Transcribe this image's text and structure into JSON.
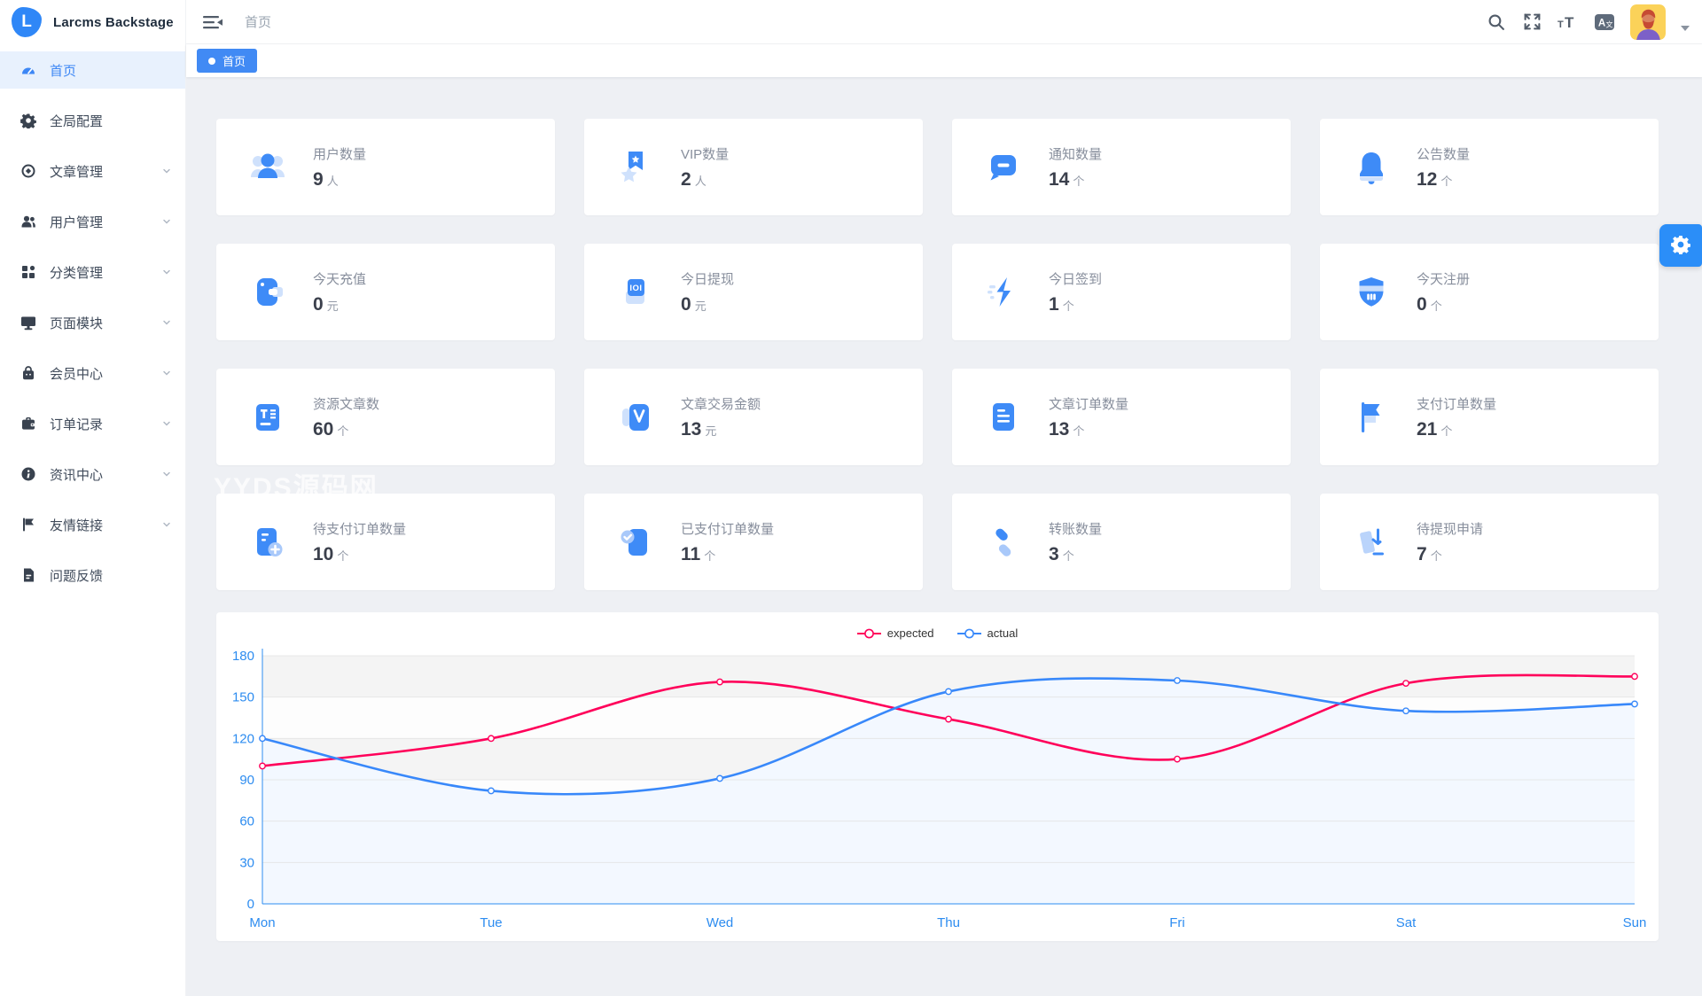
{
  "app": {
    "title": "Larcms Backstage",
    "logo_letter": "L"
  },
  "header": {
    "breadcrumb": "首页"
  },
  "tabs": {
    "active_label": "首页"
  },
  "colors": {
    "accent": "#3E8BF7",
    "tag": "#418AF4",
    "fab": "#2B8EF8",
    "expected": "#FF005A",
    "actual": "#3888FA"
  },
  "sidebar": {
    "items": [
      {
        "label": "首页",
        "icon": "dashboard-icon",
        "active": true,
        "has_chevron": false
      },
      {
        "label": "全局配置",
        "icon": "gear-icon",
        "active": false,
        "has_chevron": false
      },
      {
        "label": "文章管理",
        "icon": "compass-icon",
        "active": false,
        "has_chevron": true
      },
      {
        "label": "用户管理",
        "icon": "users-icon",
        "active": false,
        "has_chevron": true
      },
      {
        "label": "分类管理",
        "icon": "grid-icon",
        "active": false,
        "has_chevron": true
      },
      {
        "label": "页面模块",
        "icon": "monitor-icon",
        "active": false,
        "has_chevron": true
      },
      {
        "label": "会员中心",
        "icon": "bag-icon",
        "active": false,
        "has_chevron": true
      },
      {
        "label": "订单记录",
        "icon": "wallet-icon",
        "active": false,
        "has_chevron": true
      },
      {
        "label": "资讯中心",
        "icon": "info-icon",
        "active": false,
        "has_chevron": true
      },
      {
        "label": "友情链接",
        "icon": "flag-icon",
        "active": false,
        "has_chevron": true
      },
      {
        "label": "问题反馈",
        "icon": "feedback-icon",
        "active": false,
        "has_chevron": false
      }
    ]
  },
  "cards": [
    {
      "label": "用户数量",
      "value": "9",
      "unit": "人",
      "icon": "users-stat-icon"
    },
    {
      "label": "VIP数量",
      "value": "2",
      "unit": "人",
      "icon": "vip-icon"
    },
    {
      "label": "通知数量",
      "value": "14",
      "unit": "个",
      "icon": "notification-icon"
    },
    {
      "label": "公告数量",
      "value": "12",
      "unit": "个",
      "icon": "announcement-icon"
    },
    {
      "label": "今天充值",
      "value": "0",
      "unit": "元",
      "icon": "recharge-icon"
    },
    {
      "label": "今日提现",
      "value": "0",
      "unit": "元",
      "icon": "withdraw-icon"
    },
    {
      "label": "今日签到",
      "value": "1",
      "unit": "个",
      "icon": "signin-icon"
    },
    {
      "label": "今天注册",
      "value": "0",
      "unit": "个",
      "icon": "register-icon"
    },
    {
      "label": "资源文章数",
      "value": "60",
      "unit": "个",
      "icon": "article-icon"
    },
    {
      "label": "文章交易金额",
      "value": "13",
      "unit": "元",
      "icon": "transaction-icon"
    },
    {
      "label": "文章订单数量",
      "value": "13",
      "unit": "个",
      "icon": "article-order-icon"
    },
    {
      "label": "支付订单数量",
      "value": "21",
      "unit": "个",
      "icon": "pay-order-icon"
    },
    {
      "label": "待支付订单数量",
      "value": "10",
      "unit": "个",
      "icon": "pending-order-icon"
    },
    {
      "label": "已支付订单数量",
      "value": "11",
      "unit": "个",
      "icon": "paid-order-icon"
    },
    {
      "label": "转账数量",
      "value": "3",
      "unit": "个",
      "icon": "transfer-icon"
    },
    {
      "label": "待提现申请",
      "value": "7",
      "unit": "个",
      "icon": "withdraw-request-icon"
    }
  ],
  "watermark": "YYDS源码网",
  "chart_data": {
    "type": "line",
    "categories": [
      "Mon",
      "Tue",
      "Wed",
      "Thu",
      "Fri",
      "Sat",
      "Sun"
    ],
    "series": [
      {
        "name": "expected",
        "color": "#FF005A",
        "values": [
          100,
          120,
          161,
          134,
          105,
          160,
          165
        ],
        "area": false
      },
      {
        "name": "actual",
        "color": "#3888FA",
        "values": [
          120,
          82,
          91,
          154,
          162,
          140,
          145
        ],
        "area": true,
        "area_color": "#f3f8ff"
      }
    ],
    "ylim": [
      0,
      180
    ],
    "y_ticks": [
      0,
      30,
      60,
      90,
      120,
      150,
      180
    ],
    "legend_position": "top",
    "grid": true,
    "axis_color": "#2d8cf0"
  }
}
